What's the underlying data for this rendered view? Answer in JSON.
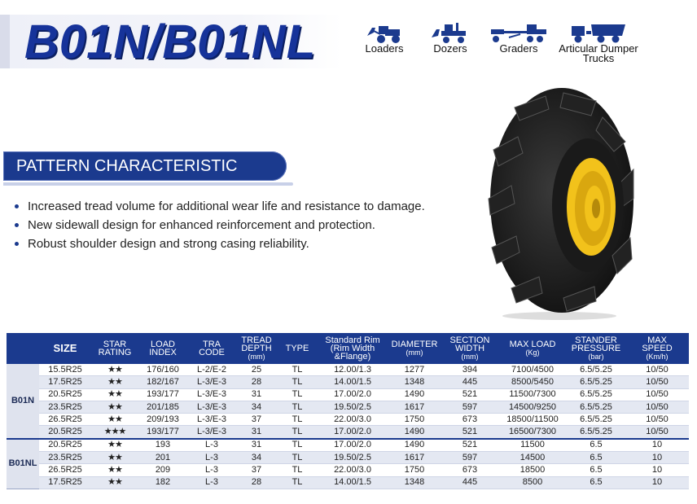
{
  "header": {
    "title": "B01N/B01NL"
  },
  "machines": [
    {
      "label": "Loaders",
      "icon": "loader-icon"
    },
    {
      "label": "Dozers",
      "icon": "dozer-icon"
    },
    {
      "label": "Graders",
      "icon": "grader-icon"
    },
    {
      "label": "Articular Dumper Trucks",
      "label_line1": "Articular Dumper",
      "label_line2": "Trucks",
      "icon": "dumper-truck-icon"
    }
  ],
  "pattern": {
    "heading": "PATTERN CHARACTERISTIC",
    "bullets": [
      "Increased tread volume for additional wear life and resistance to damage.",
      "New sidewall design for enhanced reinforcement and protection.",
      "Robust shoulder design and strong casing reliability."
    ]
  },
  "table": {
    "headers": {
      "size": "SIZE",
      "star1": "STAR",
      "star2": "RATING",
      "load1": "LOAD",
      "load2": "INDEX",
      "tra1": "TRA",
      "tra2": "CODE",
      "tread1": "TREAD",
      "tread2": "DEPTH",
      "tread3": "(mm)",
      "type": "TYPE",
      "rim1": "Standard Rim",
      "rim2": "(Rim Width",
      "rim3": "&Flange)",
      "dia1": "DIAMETER",
      "dia2": "(mm)",
      "sec1": "SECTION",
      "sec2": "WIDTH",
      "sec3": "(mm)",
      "max1": "MAX LOAD",
      "max2": "(Kg)",
      "press1": "STANDER",
      "press2": "PRESSURE",
      "press3": "(bar)",
      "speed1": "MAX",
      "speed2": "SPEED",
      "speed3": "(Km/h)"
    },
    "groups": [
      {
        "name": "B01N",
        "rows": [
          [
            "15.5R25",
            "★★",
            "176/160",
            "L-2/E-2",
            "25",
            "TL",
            "12.00/1.3",
            "1277",
            "394",
            "7100/4500",
            "6.5/5.25",
            "10/50"
          ],
          [
            "17.5R25",
            "★★",
            "182/167",
            "L-3/E-3",
            "28",
            "TL",
            "14.00/1.5",
            "1348",
            "445",
            "8500/5450",
            "6.5/5.25",
            "10/50"
          ],
          [
            "20.5R25",
            "★★",
            "193/177",
            "L-3/E-3",
            "31",
            "TL",
            "17.00/2.0",
            "1490",
            "521",
            "11500/7300",
            "6.5/5.25",
            "10/50"
          ],
          [
            "23.5R25",
            "★★",
            "201/185",
            "L-3/E-3",
            "34",
            "TL",
            "19.50/2.5",
            "1617",
            "597",
            "14500/9250",
            "6.5/5.25",
            "10/50"
          ],
          [
            "26.5R25",
            "★★",
            "209/193",
            "L-3/E-3",
            "37",
            "TL",
            "22.00/3.0",
            "1750",
            "673",
            "18500/11500",
            "6.5/5.25",
            "10/50"
          ],
          [
            "20.5R25",
            "★★★",
            "193/177",
            "L-3/E-3",
            "31",
            "TL",
            "17.00/2.0",
            "1490",
            "521",
            "16500/7300",
            "6.5/5.25",
            "10/50"
          ]
        ]
      },
      {
        "name": "B01NL",
        "rows": [
          [
            "20.5R25",
            "★★",
            "193",
            "L-3",
            "31",
            "TL",
            "17.00/2.0",
            "1490",
            "521",
            "11500",
            "6.5",
            "10"
          ],
          [
            "23.5R25",
            "★★",
            "201",
            "L-3",
            "34",
            "TL",
            "19.50/2.5",
            "1617",
            "597",
            "14500",
            "6.5",
            "10"
          ],
          [
            "26.5R25",
            "★★",
            "209",
            "L-3",
            "37",
            "TL",
            "22.00/3.0",
            "1750",
            "673",
            "18500",
            "6.5",
            "10"
          ],
          [
            "17.5R25",
            "★★",
            "182",
            "L-3",
            "28",
            "TL",
            "14.00/1.5",
            "1348",
            "445",
            "8500",
            "6.5",
            "10"
          ]
        ]
      }
    ]
  },
  "colors": {
    "brand_blue": "#1b3a8e",
    "rim_yellow": "#f2c21b"
  }
}
